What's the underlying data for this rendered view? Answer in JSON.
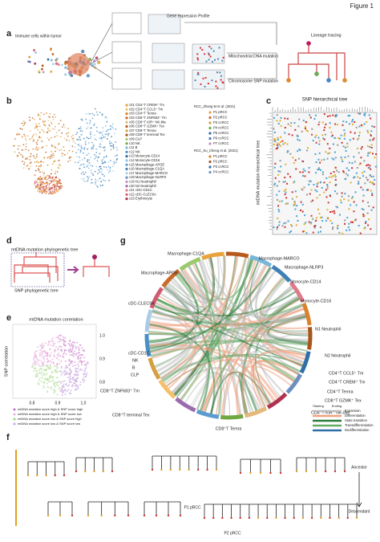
{
  "figure_label": "Figure 1",
  "panel_labels": [
    "a",
    "b",
    "c",
    "d",
    "e",
    "f",
    "g"
  ],
  "panel_a": {
    "source": "Immune cells within tumor",
    "profiles": [
      "Gene expression Profile",
      "Mitochondrial DNA mutation",
      "Chromosome SNP mutation"
    ],
    "result": "Lineage tracing"
  },
  "panel_b": {
    "clusters": [
      "c01 CD4⁺T CREM⁺ Tm",
      "c02 CD4⁺T CCL5⁺ Tm",
      "c03 CD4⁺T Temra",
      "c04 CD8⁺T ZNF683⁺ Tm",
      "c05 CD8⁺T KIR⁺ NK-like",
      "c06 CD8⁺T GZMK⁺ Tex",
      "c07 CD8⁺T Temra",
      "c08 CD8⁺T terminal Tex",
      "c09 CLP",
      "c10 NK",
      "c11 B",
      "c12 NK",
      "c13 Monocyte-CD14",
      "c14 Monocyte-CD16",
      "c15 Macrophage-APOE",
      "c16 Macrophage-C1QA",
      "c17 Macrophage-MARCO",
      "c18 Macrophage-NLRP3",
      "c19 N1 Neutrophil",
      "c20 N2 Neutrophil",
      "c21 cDC-CD1C",
      "c22 cDC-CLEC9A",
      "c23 Erythrocyte"
    ],
    "study_1": {
      "name": "RCC_Zhang M et al. (2021)",
      "samples": [
        "P1 pRCC",
        "P2 pRCC",
        "P3 ccRCC",
        "P4 ccRCC",
        "P5 ccRCC",
        "P6 ccRCC",
        "P7 ccRCC"
      ]
    },
    "study_2": {
      "name": "RCC_Su_Cheng et al. (2021)",
      "samples": [
        "P1 pRCC",
        "P2 pRCC",
        "P3 ccRCC",
        "P4 ccRCC"
      ]
    }
  },
  "panel_c": {
    "x_title": "SNP hierarchical tree",
    "y_title": "mtDNA mutation hierarchical tree"
  },
  "panel_d": {
    "top": "mtDNA mutation phylogenetic tree",
    "bottom": "SNP phylogenetic tree"
  },
  "panel_e": {
    "title": "mtDNA mutation correlation",
    "y_label": "SNP correlation",
    "xticks": [
      "0.8",
      "0.9",
      "1.0"
    ],
    "yticks": [
      "1.0",
      "0.9",
      "0.8"
    ],
    "legend": [
      "mtDNA mutation score high & SNP score high",
      "mtDNA mutation score high & SNP score low",
      "mtDNA mutation score low & SNP score high",
      "mtDNA mutation score low & SNP score low"
    ]
  },
  "panel_g": {
    "sectors": [
      "Macrophage-C1QA",
      "Macrophage-MARCO",
      "Macrophage-NLRP3",
      "Macrophage-APOE",
      "Monocyte-CD14",
      "cDC-CLEC9A",
      "Monocyte-CD16",
      "N1 Neutrophil",
      "N2 Neutrophil",
      "cDC-CD1C",
      "NK",
      "B",
      "CLP",
      "CD4⁺T CCL5⁺ Tm",
      "CD4⁺T CREM⁺ Tm",
      "CD4⁺T Temra",
      "CD8⁺T GZMK⁺ Tex",
      "CD8⁺T ZNF683⁺ Tm",
      "CD8⁺T KIR⁺ NK-like",
      "CD8⁺T terminal Tex",
      "CD8⁺T Temra"
    ],
    "legend_headers": [
      "Starting",
      "Ending"
    ],
    "legend": [
      "Expansion",
      "Differentiation",
      "State transition",
      "Transdifferentiation",
      "Dedifferentiation"
    ]
  },
  "panel_f": {
    "trees": [
      "P1 pRCC",
      "P2 pRCC"
    ],
    "axis": [
      "Ancestor",
      "Descendant"
    ]
  }
}
